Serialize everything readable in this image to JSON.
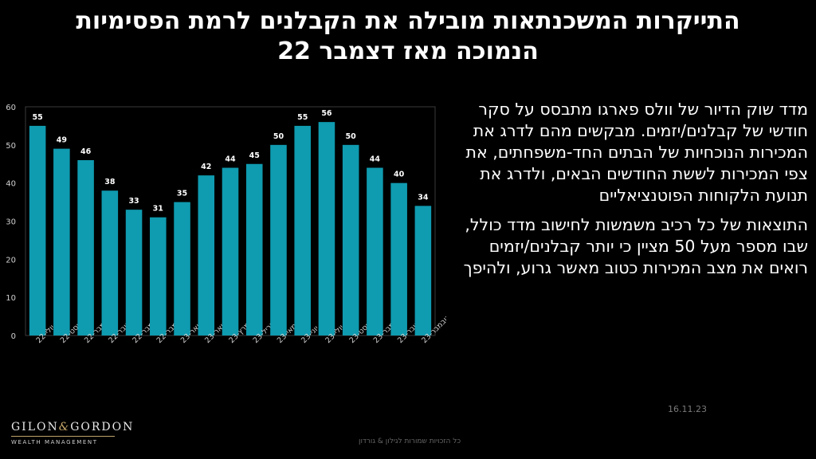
{
  "title": {
    "line1": "התייקרות המשכנתאות מובילה את הקבלנים לרמת הפסימיות",
    "line2": "הנמוכה מאז דצמבר 22"
  },
  "chart_data": {
    "type": "bar",
    "categories": [
      "יולי-22",
      "אוגוסט-22",
      "ספטמבר-22",
      "אוקטובר-22",
      "נובמבר-22",
      "דצמבר-22",
      "ינואר-23",
      "פברואר-23",
      "מרץ-23",
      "אפריל-23",
      "מאי-23",
      "יוני-23",
      "יולי-23",
      "אוגוסט-23",
      "ספטמבר-23",
      "אוקטובר-23",
      "נובמבר-23"
    ],
    "values": [
      55,
      49,
      46,
      38,
      33,
      31,
      35,
      42,
      44,
      45,
      50,
      55,
      56,
      50,
      44,
      40,
      34
    ],
    "yticks": [
      0,
      10,
      20,
      30,
      40,
      50,
      60
    ],
    "ylim": [
      0,
      60
    ],
    "bar_color": "#0f9bb0",
    "grid": false
  },
  "side_text": {
    "p1": "מדד שוק הדיור של וולס פארגו מתבסס על סקר חודשי של קבלנים/יזמים. מבקשים מהם לדרג את  המכירות הנוכחיות של הבתים החד-משפחתים, את צפי המכירות לששת החודשים הבאים, ולדרג את תנועת הלקוחות הפוטנציאליים",
    "p2": "התוצאות של כל רכיב משמשות לחישוב מדד כולל, שבו מספר מעל 50 מציין כי יותר קבלנים/יזמים רואים את מצב המכירות כטוב מאשר גרוע, ולהיפך"
  },
  "date": "16.11.23",
  "footer_note": "כל הזכויות שמורות לגילון & גורדון",
  "logo": {
    "name_left": "GILON",
    "amp": "&",
    "name_right": "GORDON",
    "sub": "WEALTH MANAGEMENT"
  }
}
